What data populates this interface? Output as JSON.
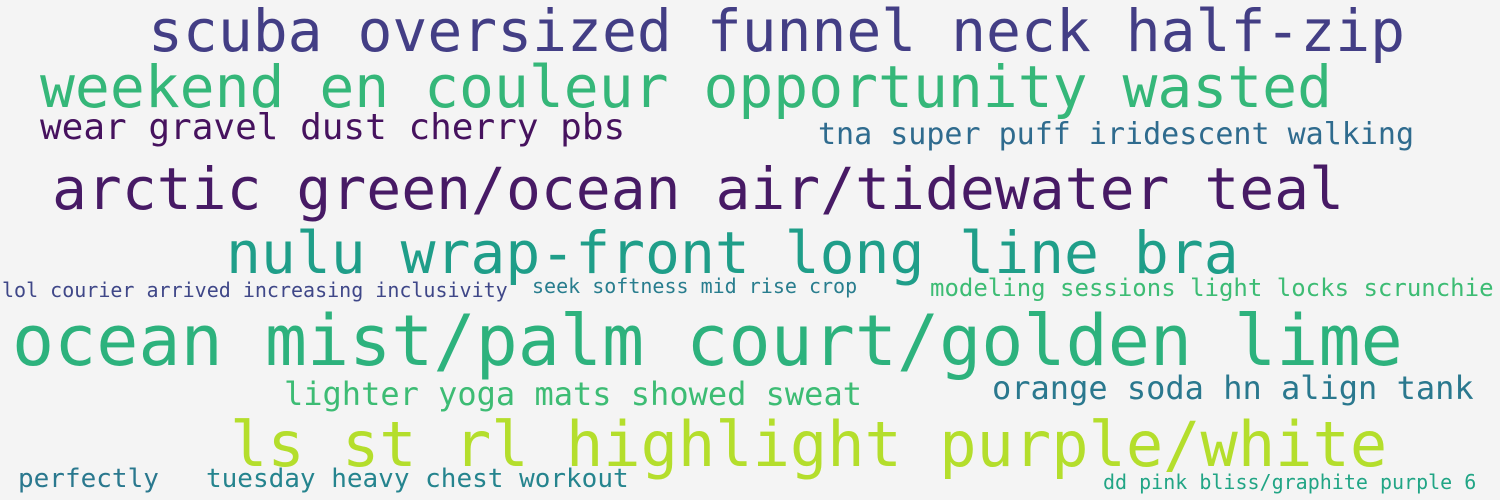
{
  "word_cloud": {
    "words": [
      {
        "text": "scuba oversized funnel neck half-zip",
        "color": "#433e85"
      },
      {
        "text": "weekend en couleur opportunity wasted",
        "color": "#35b779"
      },
      {
        "text": "wear gravel dust cherry pbs",
        "color": "#46125e"
      },
      {
        "text": "tna super puff iridescent walking",
        "color": "#2f6b8e"
      },
      {
        "text": "arctic green/ocean air/tidewater teal",
        "color": "#471a65"
      },
      {
        "text": "nulu wrap-front long line bra",
        "color": "#1f9e89"
      },
      {
        "text": "lol courier arrived increasing inclusivity",
        "color": "#3f4788"
      },
      {
        "text": "seek softness mid rise crop",
        "color": "#287d8e"
      },
      {
        "text": "modeling sessions light locks scrunchie",
        "color": "#3dbc74"
      },
      {
        "text": "ocean mist/palm court/golden lime",
        "color": "#2db27d"
      },
      {
        "text": "lighter yoga mats showed sweat",
        "color": "#3dbc74"
      },
      {
        "text": "orange soda hn align tank",
        "color": "#2a788e"
      },
      {
        "text": "ls st rl highlight purple/white",
        "color": "#b4de2c"
      },
      {
        "text": "perfectly",
        "color": "#2a788e"
      },
      {
        "text": "tuesday heavy chest workout",
        "color": "#25848e"
      },
      {
        "text": "dd pink bliss/graphite purple 6",
        "color": "#21a585"
      }
    ]
  }
}
